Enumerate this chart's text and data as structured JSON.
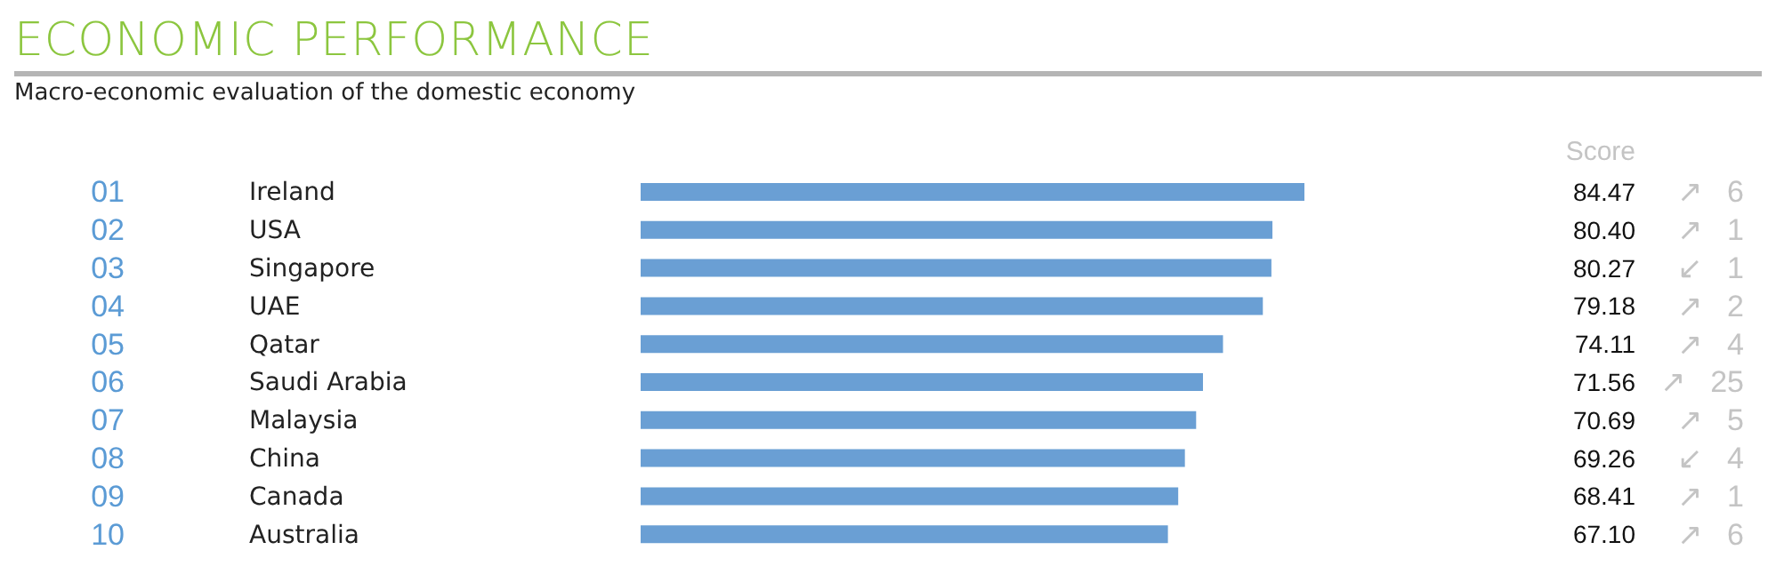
{
  "chart_data": {
    "type": "bar",
    "orientation": "horizontal",
    "title": "ECONOMIC PERFORMANCE",
    "subtitle": "Macro-economic evaluation of the domestic economy",
    "categories": [
      "Ireland",
      "USA",
      "Singapore",
      "UAE",
      "Qatar",
      "Saudi Arabia",
      "Malaysia",
      "China",
      "Canada",
      "Australia"
    ],
    "values": [
      84.47,
      80.4,
      80.27,
      79.18,
      74.11,
      71.56,
      70.69,
      69.26,
      68.41,
      67.1
    ],
    "value_labels": [
      "84.47",
      "80.40",
      "80.27",
      "79.18",
      "74.11",
      "71.56",
      "70.69",
      "69.26",
      "68.41",
      "67.10"
    ],
    "color": "#6a9fd4",
    "annotations": [
      "Score",
      "01",
      "↗ 6",
      "02",
      "↗ 1",
      "03",
      "↙ 1",
      "04",
      "↗ 2",
      "05",
      "↗ 4",
      "06",
      "↗ 25",
      "07",
      "↗ 5",
      "08",
      "↙ 4",
      "09",
      "↗ 1",
      "10",
      "↗ 6"
    ]
  }
}
